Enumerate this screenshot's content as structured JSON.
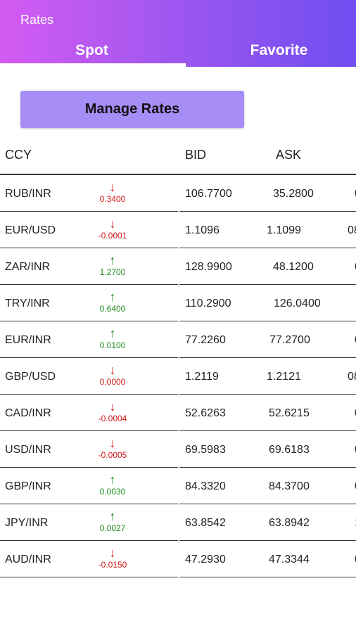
{
  "header": {
    "title": "Rates",
    "tabs": [
      {
        "label": "Spot",
        "active": true
      },
      {
        "label": "Favorite",
        "active": false
      }
    ]
  },
  "manage_button": {
    "label": "Manage Rates"
  },
  "table": {
    "columns": [
      "CCY",
      "BID",
      "ASK"
    ],
    "rows": [
      {
        "ccy": "RUB/INR",
        "direction": "down",
        "change": "0.3400",
        "bid": "106.7700",
        "ask": "35.2800",
        "extra": "0"
      },
      {
        "ccy": "EUR/USD",
        "direction": "down",
        "change": "-0.0001",
        "bid": "1.1096",
        "ask": "1.1099",
        "extra": "08"
      },
      {
        "ccy": "ZAR/INR",
        "direction": "up",
        "change": "1.2700",
        "bid": "128.9900",
        "ask": "48.1200",
        "extra": "0"
      },
      {
        "ccy": "TRY/INR",
        "direction": "up",
        "change": "0.6400",
        "bid": "110.2900",
        "ask": "126.0400",
        "extra": ""
      },
      {
        "ccy": "EUR/INR",
        "direction": "up",
        "change": "0.0100",
        "bid": "77.2260",
        "ask": "77.2700",
        "extra": "0"
      },
      {
        "ccy": "GBP/USD",
        "direction": "down",
        "change": "0.0000",
        "bid": "1.2119",
        "ask": "1.2121",
        "extra": "08"
      },
      {
        "ccy": "CAD/INR",
        "direction": "down",
        "change": "-0.0004",
        "bid": "52.6263",
        "ask": "52.6215",
        "extra": "0"
      },
      {
        "ccy": "USD/INR",
        "direction": "down",
        "change": "-0.0005",
        "bid": "69.5983",
        "ask": "69.6183",
        "extra": "0"
      },
      {
        "ccy": "GBP/INR",
        "direction": "up",
        "change": "0.0030",
        "bid": "84.3320",
        "ask": "84.3700",
        "extra": "0"
      },
      {
        "ccy": "JPY/INR",
        "direction": "up",
        "change": "0.0027",
        "bid": "63.8542",
        "ask": "63.8942",
        "extra": "1"
      },
      {
        "ccy": "AUD/INR",
        "direction": "down",
        "change": "-0.0150",
        "bid": "47.2930",
        "ask": "47.3344",
        "extra": "0"
      }
    ]
  },
  "colors": {
    "header_start": "#d45bf2",
    "header_end": "#6f4ef0",
    "button_bg": "#a78ef7",
    "up": "#1e8a1e",
    "down": "#d01818"
  },
  "icons": {
    "up": "arrow-up-icon",
    "down": "arrow-down-icon"
  }
}
